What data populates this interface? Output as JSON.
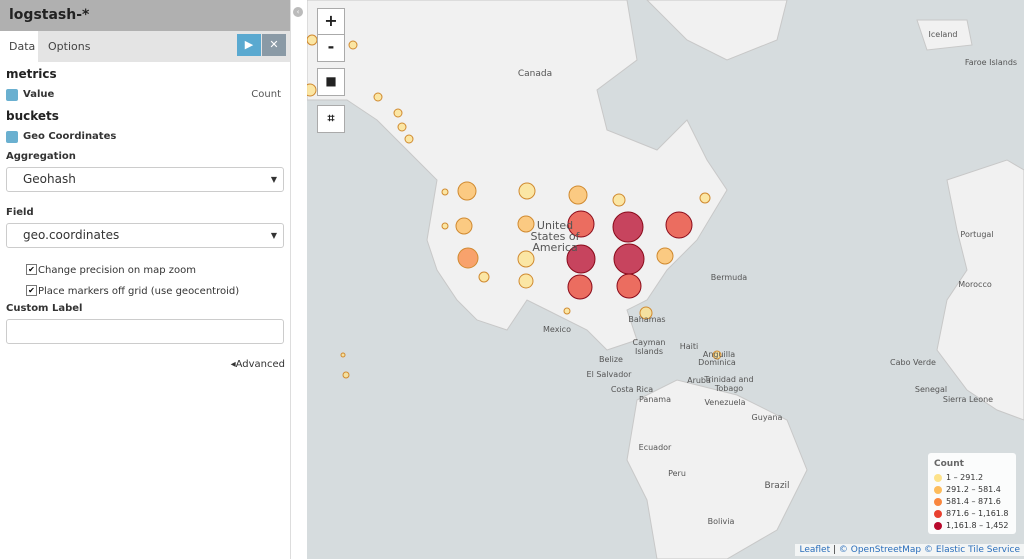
{
  "sidebar": {
    "index_pattern": "logstash-*",
    "tabs": [
      "Data",
      "Options"
    ],
    "metrics": {
      "heading": "metrics",
      "agg_label": "Value",
      "agg_type": "Count"
    },
    "buckets": {
      "heading": "buckets",
      "agg_label": "Geo Coordinates",
      "aggregation_label": "Aggregation",
      "aggregation_value": "Geohash",
      "field_label": "Field",
      "field_value": "geo.coordinates",
      "checkboxes": [
        "Change precision on map zoom",
        "Place markers off grid (use geocentroid)"
      ],
      "custom_label": "Custom Label",
      "advanced": "Advanced"
    }
  },
  "map": {
    "zoom_controls": [
      "+",
      "-"
    ],
    "places": [
      "Iceland",
      "Faroe Islands",
      "Canada",
      "United States of America",
      "Mexico",
      "Bermuda",
      "Portugal",
      "Morocco",
      "Bahamas",
      "Cayman Islands",
      "Haiti",
      "Anguilla",
      "Dominica",
      "Belize",
      "El Salvador",
      "Costa Rica",
      "Panama",
      "Aruba",
      "Trinidad and Tobago",
      "Venezuela",
      "Guyana",
      "Ecuador",
      "Peru",
      "Brazil",
      "Bolivia",
      "Cabo Verde",
      "Senegal",
      "Sierra Leone"
    ],
    "legend": {
      "title": "Count",
      "items": [
        {
          "label": "1 – 291.2",
          "color": "#fde28a"
        },
        {
          "label": "291.2 – 581.4",
          "color": "#fdbc5c"
        },
        {
          "label": "581.4 – 871.6",
          "color": "#f9873f"
        },
        {
          "label": "871.6 – 1,161.8",
          "color": "#e8402f"
        },
        {
          "label": "1,161.8 – 1,452",
          "color": "#b8092c"
        }
      ]
    },
    "attribution": {
      "leaflet": "Leaflet",
      "osm": "© OpenStreetMap",
      "ets": "© Elastic Tile Service"
    }
  }
}
